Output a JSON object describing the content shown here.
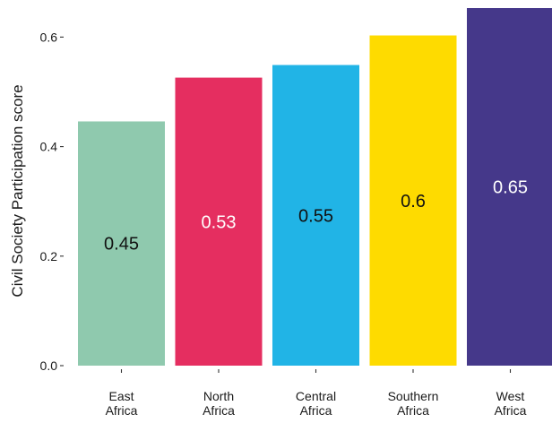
{
  "chart_data": {
    "type": "bar",
    "categories": [
      [
        "East",
        "Africa"
      ],
      [
        "North",
        "Africa"
      ],
      [
        "Central",
        "Africa"
      ],
      [
        "Southern",
        "Africa"
      ],
      [
        "West",
        "Africa"
      ]
    ],
    "values": [
      0.446,
      0.526,
      0.549,
      0.603,
      0.653
    ],
    "value_labels": [
      "0.45",
      "0.53",
      "0.55",
      "0.6",
      "0.65"
    ],
    "colors": [
      "#8FC9AE",
      "#E52E60",
      "#21B4E6",
      "#FEDB00",
      "#45388A"
    ],
    "label_colors": [
      "#111111",
      "#ffffff",
      "#111111",
      "#111111",
      "#ffffff"
    ],
    "ylabel": "Civil Society Participation score",
    "xlabel": "",
    "ylim": [
      0,
      0.653
    ],
    "yticks": [
      0.0,
      0.2,
      0.4,
      0.6
    ],
    "ytick_labels": [
      "0.0",
      "0.2",
      "0.4",
      "0.6"
    ],
    "grid": false,
    "legend": "none"
  }
}
